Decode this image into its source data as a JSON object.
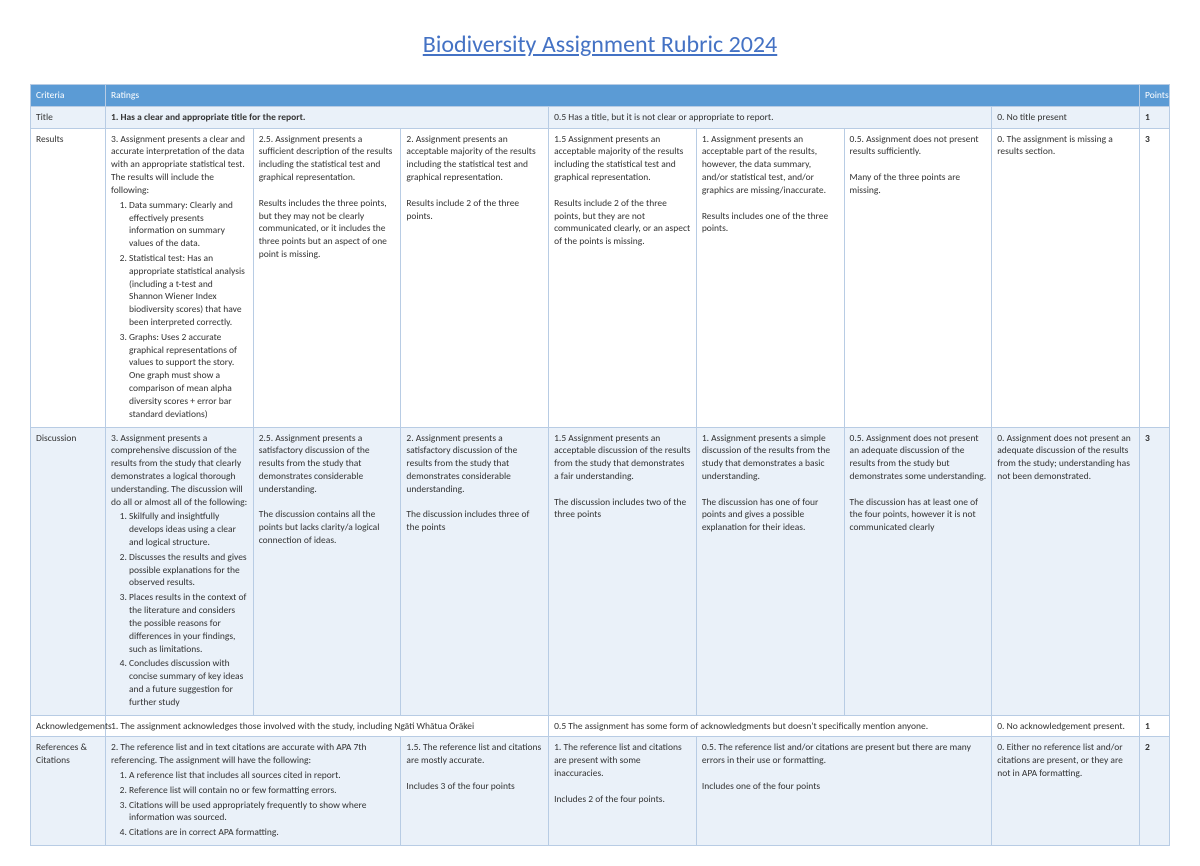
{
  "title": "Biodiversity Assignment Rubric 2024",
  "headers": {
    "criteria": "Criteria",
    "ratings": "Ratings",
    "points": "Points"
  },
  "colors": {
    "header_bg": "#5b9bd5",
    "header_fg": "#ffffff",
    "alt_bg": "#eaf1f9",
    "border": "#b8cce4",
    "title_color": "#4472c4"
  },
  "rows": {
    "title_row": {
      "criteria": "Title",
      "c1": "1. Has a clear and appropriate title for the report.",
      "c2": "0.5 Has a title, but it is not clear or appropriate to report.",
      "c3": "0. No title present",
      "points": "1"
    },
    "results_row": {
      "criteria": "Results",
      "c1_lead": "3. Assignment presents a clear and accurate interpretation of the data with an appropriate statistical test. The results will include the following:",
      "c1_items": [
        "Data summary: Clearly and effectively presents information on summary values of the data.",
        "Statistical test: Has an appropriate statistical analysis (including a t-test and Shannon Wiener Index biodiversity scores) that have been interpreted correctly.",
        "Graphs: Uses 2 accurate graphical representations of values to support the story. One graph must show a comparison of mean alpha diversity scores + error bar standard deviations)"
      ],
      "c2": "2.5. Assignment presents a sufficient description of the results including the statistical test and graphical representation.\n\nResults includes the three points, but they may not be clearly communicated, or it includes the three points but an aspect of one point is missing.",
      "c3": "2. Assignment presents an acceptable majority of the results including the statistical test and graphical representation.\n\nResults include 2 of the three points.",
      "c4": "1.5 Assignment presents an acceptable majority of the results including the statistical test and graphical representation.\n\nResults include 2 of the three points, but they are not communicated clearly, or an aspect of the points is missing.",
      "c5": "1. Assignment presents an acceptable part of the results, however, the data summary, and/or statistical test, and/or graphics are missing/inaccurate.\n\nResults includes one of the three points.",
      "c6": "0.5. Assignment does not present results sufficiently.\n\nMany of the three points are missing.",
      "c7": "0. The assignment is missing a results section.",
      "points": "3"
    },
    "discussion_row": {
      "criteria": "Discussion",
      "c1_lead": "3. Assignment presents a comprehensive discussion of the results from the study that clearly demonstrates a logical thorough understanding. The discussion will do all or almost all of the following:",
      "c1_items": [
        "Skilfully and insightfully develops ideas using a clear and logical structure.",
        "Discusses the results and gives possible explanations for the observed results.",
        "Places results in the context of the literature and considers the possible reasons for differences in your findings, such as limitations.",
        "Concludes discussion with concise summary of key ideas and a future suggestion for further study"
      ],
      "c2": "2.5. Assignment presents a satisfactory discussion of the results from the study that demonstrates considerable understanding.\n\nThe discussion contains all the points but lacks clarity/a logical connection of ideas.",
      "c3": "2.  Assignment presents a satisfactory discussion of the results from the study that demonstrates considerable understanding.\n\nThe discussion includes three of the points",
      "c4": "1.5 Assignment presents an acceptable discussion of the results from the study that demonstrates a fair understanding.\n\nThe discussion includes two of the three points",
      "c5": "1. Assignment presents a simple discussion of the results from the study that demonstrates a basic understanding.\n\nThe discussion has one of four points and gives a possible explanation for their ideas.",
      "c6": "0.5. Assignment does not present an adequate discussion of the results from the study but demonstrates some understanding.\n\nThe discussion has at least one of the four points, however it is not communicated clearly",
      "c7": "0. Assignment does not present an adequate discussion of the results from the study; understanding has not been demonstrated.",
      "points": "3"
    },
    "ack_row": {
      "criteria": "Acknowledgements",
      "c1": "1.  The assignment acknowledges those involved with the study, including Ngāti Whātua Ōrākei",
      "c2": "0.5 The assignment has some form of acknowledgments but doesn't specifically mention anyone.",
      "c3": "0. No acknowledgement present.",
      "points": "1"
    },
    "ref_row": {
      "criteria": "References & Citations",
      "c1_lead": "2. The reference list and in text citations are accurate with APA 7th referencing. The assignment will have the following:",
      "c1_items": [
        "A reference list that includes all sources cited in report.",
        "Reference list will contain no or few formatting errors.",
        "Citations will be used appropriately frequently to show where information was sourced.",
        "Citations are in correct APA formatting."
      ],
      "c2": "1.5. The reference list and citations are mostly accurate.\n\nIncludes 3 of the four points",
      "c3": "1. The reference list and citations are present with some inaccuracies.\n\nIncludes 2 of the four points.",
      "c4": "0.5. The reference list and/or citations are present but there are many errors in their use or formatting.\n\nIncludes one of the four points",
      "c5": "0. Either no reference list and/or citations are present, or they are not in APA formatting.",
      "points": "2"
    }
  }
}
